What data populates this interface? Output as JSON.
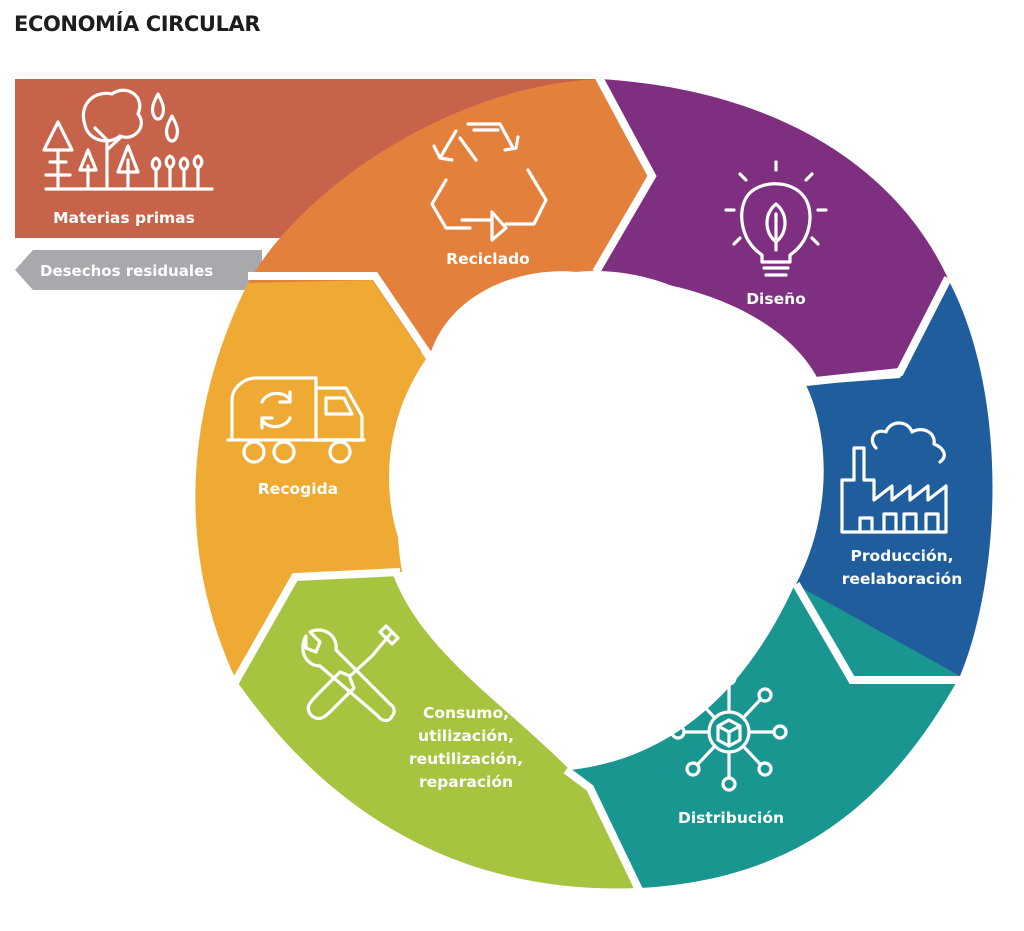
{
  "title": "ECONOMÍA CIRCULAR",
  "colors": {
    "materias": "#c8634b",
    "reciclado": "#e2803c",
    "diseno": "#7e2f80",
    "produccion": "#1f5d9d",
    "distribucion": "#1a9690",
    "consumo": "#a6c440",
    "recogida": "#eeaa33",
    "desechos": "#a8a9ad",
    "text_title": "#1d1d1b"
  },
  "inputs": {
    "materias_primas": {
      "label": "Materias primas",
      "icon": "forest-icon"
    },
    "desechos_residuales": {
      "label": "Desechos residuales",
      "icon": "arrow-left-icon"
    }
  },
  "stages": [
    {
      "id": "reciclado",
      "label": "Reciclado",
      "icon": "recycle-icon"
    },
    {
      "id": "diseno",
      "label": "Diseño",
      "icon": "lightbulb-leaf-icon"
    },
    {
      "id": "produccion",
      "lines": [
        "Producción,",
        "reelaboración"
      ],
      "icon": "factory-icon"
    },
    {
      "id": "distribucion",
      "label": "Distribución",
      "icon": "network-box-icon"
    },
    {
      "id": "consumo",
      "lines": [
        "Consumo,",
        "utilización,",
        "reutilización,",
        "reparación"
      ],
      "icon": "tools-icon"
    },
    {
      "id": "recogida",
      "label": "Recogida",
      "icon": "truck-icon"
    }
  ]
}
